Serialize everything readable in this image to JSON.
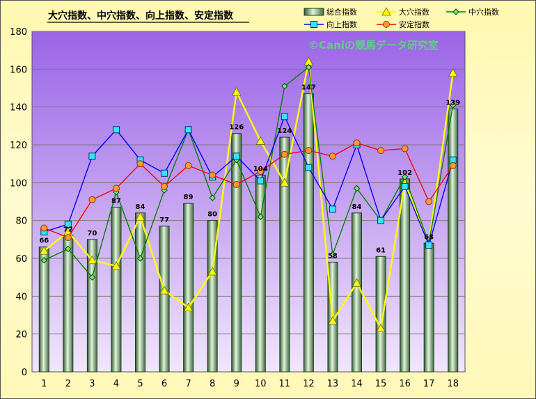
{
  "chart_data": {
    "type": "bar",
    "title": "大穴指数、中穴指数、向上指数、安定指数",
    "watermark": "©Caniの競馬データ研究室",
    "categories": [
      "1",
      "2",
      "3",
      "4",
      "5",
      "6",
      "7",
      "8",
      "9",
      "10",
      "11",
      "12",
      "13",
      "14",
      "15",
      "16",
      "17",
      "18"
    ],
    "ylim": [
      0,
      180
    ],
    "yticks": [
      0,
      20,
      40,
      60,
      80,
      100,
      120,
      140,
      160,
      180
    ],
    "grid": true,
    "legend_position": "top-right",
    "series": [
      {
        "name": "総合指数",
        "kind": "bar",
        "color": "#6f9e6f",
        "values": [
          66,
          72,
          70,
          87,
          84,
          77,
          89,
          80,
          126,
          104,
          124,
          147,
          58,
          84,
          61,
          102,
          68,
          139
        ]
      },
      {
        "name": "大穴指数",
        "kind": "line",
        "marker": "triangle",
        "color": "#ffff00",
        "values": [
          64,
          74,
          59,
          56,
          82,
          43,
          34,
          53,
          148,
          122,
          100,
          164,
          27,
          47,
          23,
          100,
          68,
          158
        ]
      },
      {
        "name": "中穴指数",
        "kind": "line",
        "marker": "diamond",
        "color": "#008000",
        "values": [
          59,
          65,
          50,
          95,
          60,
          96,
          128,
          92,
          112,
          82,
          151,
          161,
          62,
          97,
          80,
          103,
          68,
          141
        ]
      },
      {
        "name": "向上指数",
        "kind": "line",
        "marker": "square",
        "color": "#0000ff",
        "values": [
          74,
          78,
          114,
          128,
          112,
          105,
          128,
          103,
          114,
          101,
          135,
          108,
          86,
          120,
          80,
          98,
          67,
          112
        ]
      },
      {
        "name": "安定指数",
        "kind": "line",
        "marker": "circle",
        "color": "#ff0000",
        "values": [
          76,
          71,
          91,
          97,
          110,
          98,
          109,
          104,
          99,
          106,
          115,
          117,
          114,
          121,
          117,
          118,
          90,
          109
        ]
      }
    ]
  }
}
